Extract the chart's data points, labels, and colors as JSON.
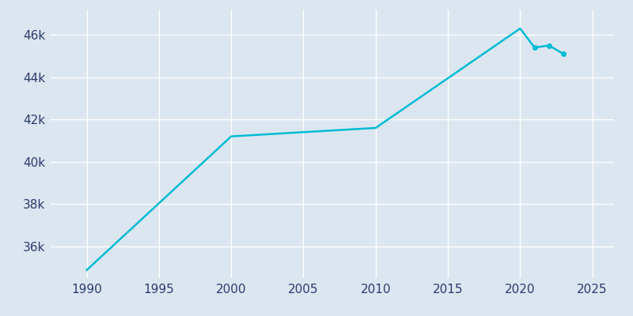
{
  "years": [
    1990,
    2000,
    2010,
    2020,
    2021,
    2022,
    2023
  ],
  "population": [
    34880,
    41200,
    41600,
    46300,
    45400,
    45500,
    45100
  ],
  "line_color": "#00bcd4",
  "bg_color": "#dce6f0",
  "grid_color": "#ffffff",
  "tick_color": "#2b3a6e",
  "xlim": [
    1987.5,
    2026.5
  ],
  "ylim": [
    34500,
    47200
  ],
  "xticks": [
    1990,
    1995,
    2000,
    2005,
    2010,
    2015,
    2020,
    2025
  ],
  "ytick_values": [
    36000,
    38000,
    40000,
    42000,
    44000,
    46000
  ],
  "ytick_labels": [
    "36k",
    "38k",
    "40k",
    "42k",
    "44k",
    "46k"
  ],
  "linewidth": 1.8,
  "marker_years": [
    2021,
    2022,
    2023
  ],
  "markersize": 4
}
